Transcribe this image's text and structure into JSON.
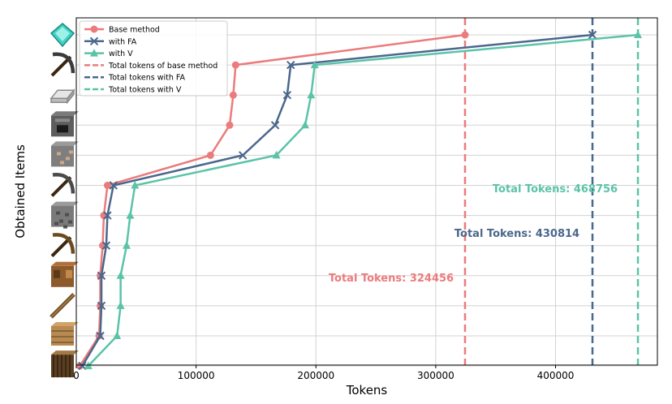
{
  "chart_data": {
    "type": "line",
    "xlabel": "Tokens",
    "ylabel": "Obtained Items",
    "xlim": [
      0,
      485000
    ],
    "x_ticks": [
      0,
      100000,
      200000,
      300000,
      400000
    ],
    "x_tick_labels": [
      "0",
      "100000",
      "200000",
      "300000",
      "400000"
    ],
    "grid": true,
    "legend_position": "top-left",
    "y_items": [
      {
        "item": "log",
        "icon": "oak-log-icon"
      },
      {
        "item": "planks",
        "icon": "planks-icon"
      },
      {
        "item": "stick",
        "icon": "stick-icon"
      },
      {
        "item": "crafting table",
        "icon": "crafting-table-icon"
      },
      {
        "item": "wooden pickaxe",
        "icon": "wooden-pickaxe-icon"
      },
      {
        "item": "cobblestone",
        "icon": "cobblestone-icon"
      },
      {
        "item": "stone pickaxe",
        "icon": "stone-pickaxe-icon"
      },
      {
        "item": "iron ore",
        "icon": "iron-ore-icon"
      },
      {
        "item": "furnace",
        "icon": "furnace-icon"
      },
      {
        "item": "iron ingot",
        "icon": "iron-ingot-icon"
      },
      {
        "item": "iron pickaxe",
        "icon": "iron-pickaxe-icon"
      },
      {
        "item": "diamond",
        "icon": "diamond-icon"
      }
    ],
    "series": [
      {
        "name": "Base method",
        "color": "#ec7b7c",
        "marker": "circle",
        "x": [
          3000,
          19000,
          20000,
          20000,
          22000,
          23000,
          26000,
          112000,
          128000,
          131000,
          133000,
          324456
        ],
        "y": [
          0,
          1,
          2,
          3,
          4,
          5,
          6,
          7,
          8,
          9,
          10,
          11
        ]
      },
      {
        "name": "with FA",
        "color": "#4a678c",
        "marker": "x",
        "x": [
          5000,
          20000,
          21000,
          21000,
          25000,
          26000,
          31000,
          139000,
          166000,
          176000,
          179000,
          430814
        ],
        "y": [
          0,
          1,
          2,
          3,
          4,
          5,
          6,
          7,
          8,
          9,
          10,
          11
        ]
      },
      {
        "name": "with V",
        "color": "#5bc3a8",
        "marker": "triangle",
        "x": [
          10000,
          34000,
          37000,
          37000,
          42000,
          45000,
          49000,
          167000,
          191000,
          196000,
          199000,
          468756
        ],
        "y": [
          0,
          1,
          2,
          3,
          4,
          5,
          6,
          7,
          8,
          9,
          10,
          11
        ]
      }
    ],
    "vlines": [
      {
        "name": "Total tokens of base method",
        "x": 324456,
        "color": "#ec7b7c"
      },
      {
        "name": "Total tokens with FA",
        "x": 430814,
        "color": "#4a678c"
      },
      {
        "name": "Total tokens with V",
        "x": 468756,
        "color": "#5bc3a8"
      }
    ],
    "annotations": [
      {
        "text": "Total Tokens: 324456",
        "color": "#ec7b7c"
      },
      {
        "text": "Total Tokens: 430814",
        "color": "#4a678c"
      },
      {
        "text": "Total Tokens: 468756",
        "color": "#5bc3a8"
      }
    ]
  }
}
